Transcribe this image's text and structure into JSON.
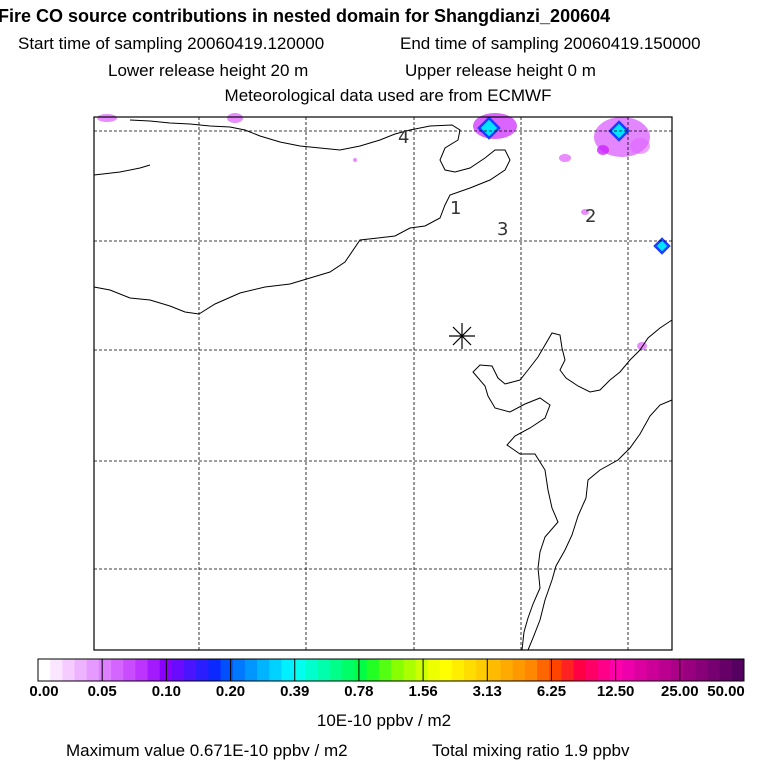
{
  "header": {
    "title": "Fire CO source contributions in nested domain for Shangdianzi_200604",
    "start_time": "Start time of sampling 20060419.120000",
    "end_time": "End time of sampling 20060419.150000",
    "lower_release": "Lower release height   20 m",
    "upper_release": "Upper release height    0 m",
    "met_data": "Meteorological data used are from ECMWF"
  },
  "colors": {
    "frame": "#000000",
    "grid": "#000000",
    "coast": "#000000",
    "plume_core": "#00e5ff",
    "plume_edge": "#1a3dff",
    "plume_halo": "#cc22ff",
    "plume_fringe": "#e066ff"
  },
  "chart_data": {
    "type": "heatmap",
    "title": "Fire CO source contributions in nested domain for Shangdianzi_200604",
    "map_labels": [
      "4",
      "1",
      "3",
      "2"
    ],
    "station_marker": "asterisk",
    "grid_lines": "dashed",
    "colorbar": {
      "unit": "10E-10 ppbv / m2",
      "tick_labels": [
        "0.00",
        "0.05",
        "0.10",
        "0.20",
        "0.39",
        "0.78",
        "1.56",
        "3.13",
        "6.25",
        "12.50",
        "25.00",
        "50.00"
      ],
      "colors": [
        "#ffffff",
        "#fbe6ff",
        "#f5ccff",
        "#eeb3ff",
        "#e699ff",
        "#dd7fff",
        "#d466ff",
        "#c94dff",
        "#bd33ff",
        "#a31aff",
        "#8a00ff",
        "#6a0aff",
        "#4a14ff",
        "#2a1eff",
        "#0a28ff",
        "#0050ff",
        "#0078ff",
        "#0096ff",
        "#00b4ff",
        "#00d2ff",
        "#00f0ff",
        "#00ffee",
        "#00ffcc",
        "#00ffaa",
        "#00ff88",
        "#00ff66",
        "#00ff44",
        "#22ff22",
        "#55ff11",
        "#88ff00",
        "#aaff00",
        "#ccff00",
        "#eeff00",
        "#ffff00",
        "#ffee00",
        "#ffdd00",
        "#ffcc00",
        "#ffbb00",
        "#ffaa00",
        "#ff9900",
        "#ff8800",
        "#ff6600",
        "#ff4400",
        "#ff2222",
        "#ff0044",
        "#ff0066",
        "#ff0088",
        "#ff00aa",
        "#ee00aa",
        "#dd00a0",
        "#cc0099",
        "#bb0090",
        "#aa0088",
        "#990080",
        "#880078",
        "#770070",
        "#660068",
        "#550060"
      ]
    },
    "maximum_value": "Maximum value  0.671E-10 ppbv / m2",
    "total_mixing_ratio": "Total mixing ratio        1.9 ppbv"
  }
}
